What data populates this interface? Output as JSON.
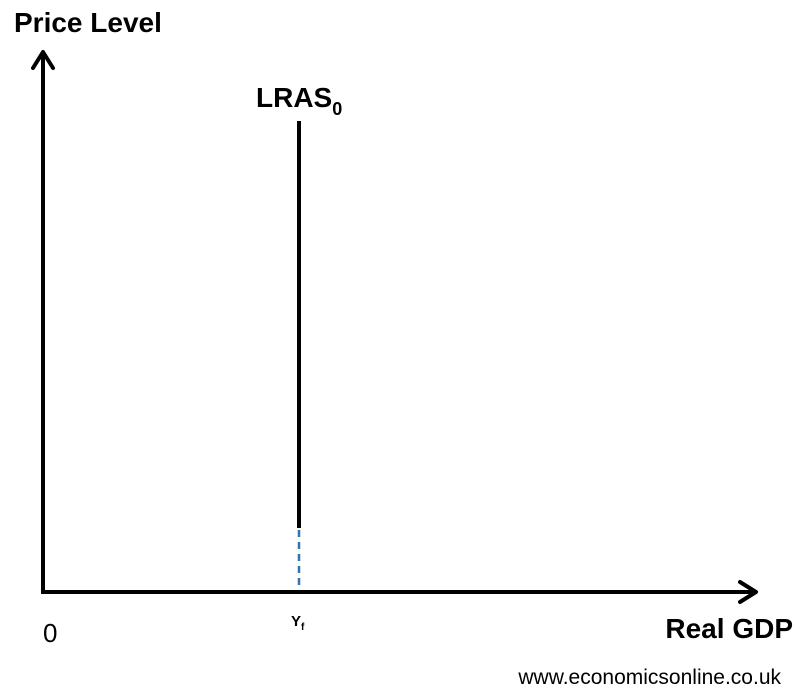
{
  "diagram": {
    "y_axis_label": "Price Level",
    "x_axis_label": "Real GDP",
    "origin_label": "0",
    "curve": {
      "label_main": "LRAS",
      "label_subscript": "0"
    },
    "x_tick": {
      "label_main": "Y",
      "label_subscript": "f"
    },
    "watermark": "www.economicsonline.co.uk"
  },
  "colors": {
    "axis": "#000000",
    "curve": "#000000",
    "guide": "#2e75b6"
  }
}
